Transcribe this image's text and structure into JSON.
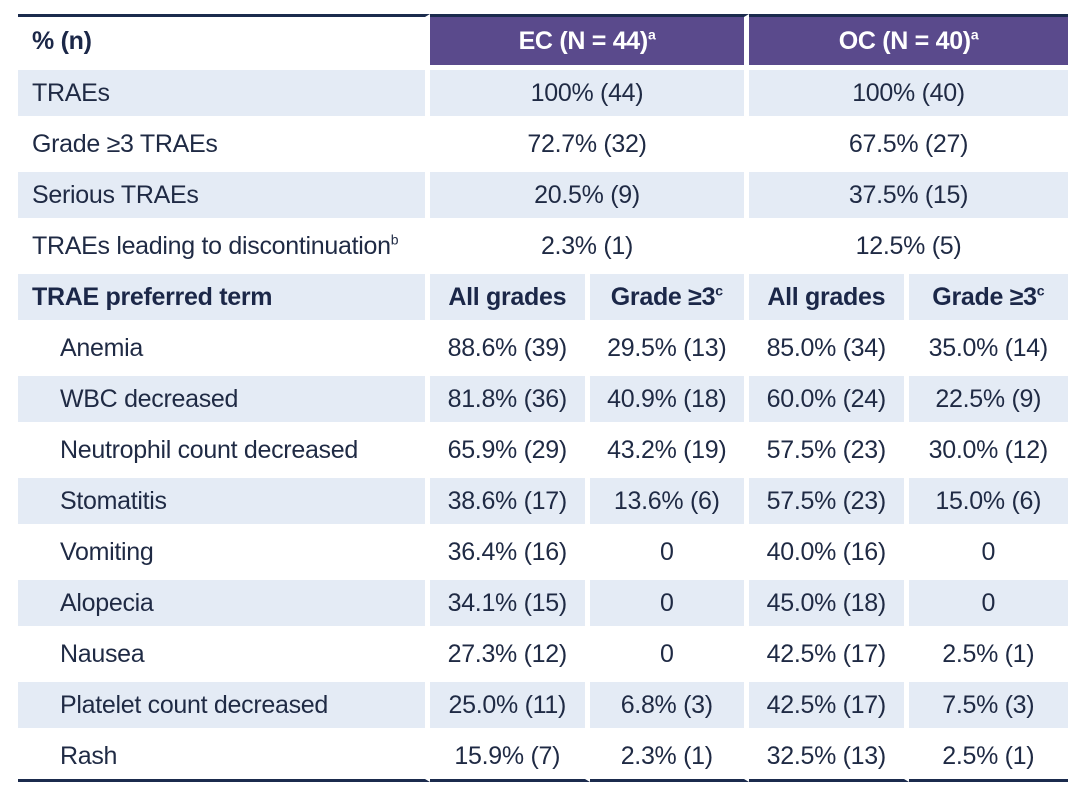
{
  "header": {
    "label": "% (n)",
    "ec": {
      "label": "EC (N = 44)",
      "sup": "a"
    },
    "oc": {
      "label": "OC (N = 40)",
      "sup": "a"
    }
  },
  "summary_rows": [
    {
      "label": "TRAEs",
      "label_sup": "",
      "ec": "100% (44)",
      "oc": "100% (40)"
    },
    {
      "label": "Grade ≥3 TRAEs",
      "label_sup": "",
      "ec": "72.7% (32)",
      "oc": "67.5% (27)"
    },
    {
      "label": "Serious TRAEs",
      "label_sup": "",
      "ec": "20.5% (9)",
      "oc": "37.5% (15)"
    },
    {
      "label": "TRAEs leading to discontinuation",
      "label_sup": "b",
      "ec": "2.3% (1)",
      "oc": "12.5% (5)"
    }
  ],
  "subheader": {
    "label": "TRAE preferred term",
    "all_grades": "All grades",
    "grade3": "Grade ≥3",
    "grade3_sup": "c"
  },
  "terms": [
    {
      "term": "Anemia",
      "ec_all": "88.6% (39)",
      "ec_g3": "29.5% (13)",
      "oc_all": "85.0% (34)",
      "oc_g3": "35.0% (14)"
    },
    {
      "term": "WBC decreased",
      "ec_all": "81.8% (36)",
      "ec_g3": "40.9% (18)",
      "oc_all": "60.0% (24)",
      "oc_g3": "22.5% (9)"
    },
    {
      "term": "Neutrophil count decreased",
      "ec_all": "65.9% (29)",
      "ec_g3": "43.2% (19)",
      "oc_all": "57.5% (23)",
      "oc_g3": "30.0% (12)"
    },
    {
      "term": "Stomatitis",
      "ec_all": "38.6% (17)",
      "ec_g3": "13.6% (6)",
      "oc_all": "57.5% (23)",
      "oc_g3": "15.0% (6)"
    },
    {
      "term": "Vomiting",
      "ec_all": "36.4% (16)",
      "ec_g3": "0",
      "oc_all": "40.0% (16)",
      "oc_g3": "0"
    },
    {
      "term": "Alopecia",
      "ec_all": "34.1% (15)",
      "ec_g3": "0",
      "oc_all": "45.0% (18)",
      "oc_g3": "0"
    },
    {
      "term": "Nausea",
      "ec_all": "27.3% (12)",
      "ec_g3": "0",
      "oc_all": "42.5% (17)",
      "oc_g3": "2.5% (1)"
    },
    {
      "term": "Platelet count decreased",
      "ec_all": "25.0% (11)",
      "ec_g3": "6.8% (3)",
      "oc_all": "42.5% (17)",
      "oc_g3": "7.5% (3)"
    },
    {
      "term": "Rash",
      "ec_all": "15.9% (7)",
      "ec_g3": "2.3% (1)",
      "oc_all": "32.5% (13)",
      "oc_g3": "2.5% (1)"
    }
  ]
}
